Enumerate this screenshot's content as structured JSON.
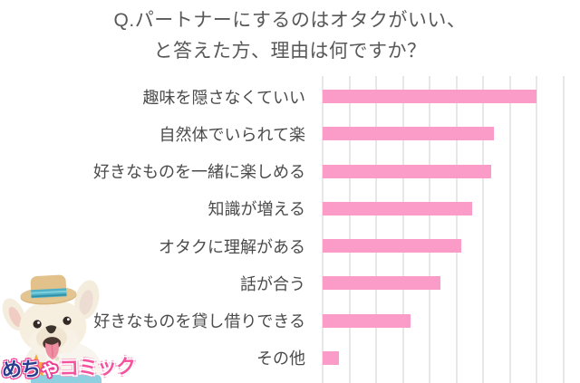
{
  "title": {
    "line1": "Q.パートナーにするのはオタクがいい、",
    "line2": "と答えた方、理由は何ですか？"
  },
  "chart_data": {
    "type": "bar",
    "orientation": "horizontal",
    "title": "Q.パートナーにするのはオタクがいい、と答えた方、理由は何ですか？",
    "categories": [
      "趣味を隠さなくていい",
      "自然体でいられて楽",
      "好きなものを一緒に楽しめる",
      "知識が増える",
      "オタクに理解がある",
      "話が合う",
      "好きなものを貸し借りできる",
      "その他"
    ],
    "values": [
      8.0,
      6.4,
      6.3,
      5.6,
      5.2,
      4.4,
      3.3,
      0.6
    ],
    "value_units": "gridline units (axis has no numeric tick labels)",
    "xlabel": "",
    "ylabel": "",
    "xlim": [
      0,
      9.7
    ],
    "gridline_step": 1,
    "grid": true,
    "legend": false,
    "bar_color": "#fa9bc8",
    "gridline_color": "#e7e7e7",
    "label_color": "#4b4b4b",
    "title_color": "#585858"
  },
  "logo": {
    "brand": "めちゃコミック",
    "text_part1": "めち",
    "text_part2": "ゃ",
    "text_part3": "コミック",
    "mascot": "french-bulldog-wearing-straw-hat",
    "star_color": "#f6a93b",
    "skirt_color": "#8fd0e0"
  }
}
